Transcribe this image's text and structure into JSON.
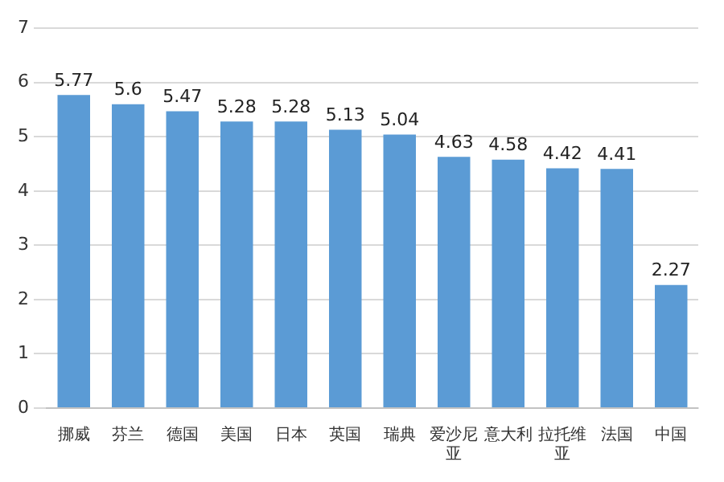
{
  "chart_data": {
    "type": "bar",
    "categories": [
      "挪威",
      "芬兰",
      "德国",
      "美国",
      "日本",
      "英国",
      "瑞典",
      "爱沙尼亚",
      "意大利",
      "拉托维亚",
      "法国",
      "中国"
    ],
    "values": [
      5.77,
      5.6,
      5.47,
      5.28,
      5.28,
      5.13,
      5.04,
      4.63,
      4.58,
      4.42,
      4.41,
      2.27
    ],
    "color": "#5b9bd5",
    "ylim": [
      0,
      7
    ],
    "yticks": [
      0,
      1,
      2,
      3,
      4,
      5,
      6,
      7
    ],
    "grid": "y",
    "data_labels": true
  }
}
